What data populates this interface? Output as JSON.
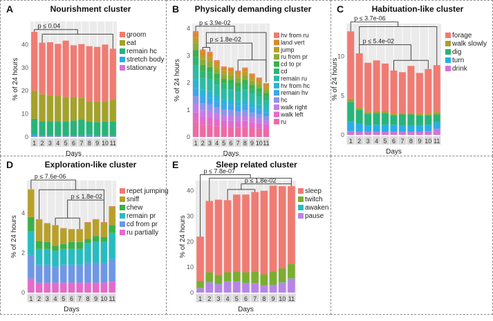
{
  "chart_data": [
    {
      "type": "bar",
      "stacked": true,
      "letter": "A",
      "title": "Nourishment cluster",
      "xlabel": "Days",
      "ylabel": "% of 24 hours",
      "ylim": [
        0,
        50
      ],
      "yticks": [
        "0",
        "10",
        "20",
        "30",
        "40"
      ],
      "ytick_values": [
        0,
        10,
        20,
        30,
        40
      ],
      "categories": [
        "1",
        "2",
        "3",
        "4",
        "5",
        "6",
        "7",
        "8",
        "9",
        "10",
        "11"
      ],
      "series": [
        {
          "name": "groom",
          "color": "#F07B72",
          "values": [
            25.5,
            22.3,
            23,
            22.5,
            24.4,
            22.5,
            23.2,
            23.9,
            23.7,
            24.5,
            21.9
          ]
        },
        {
          "name": "eat",
          "color": "#A3A22A",
          "values": [
            12.2,
            11.7,
            11.2,
            11.0,
            10.7,
            10.1,
            9.4,
            8.6,
            8.9,
            8.9,
            9.7
          ]
        },
        {
          "name": "remain hc",
          "color": "#27B47A",
          "values": [
            6.6,
            6.3,
            6.3,
            6.3,
            6.1,
            6.6,
            7.1,
            5.8,
            5.9,
            6.1,
            6.1
          ]
        },
        {
          "name": "stretch body",
          "color": "#27AEE8",
          "values": [
            1.0,
            0.3,
            0.3,
            0.3,
            0.3,
            0.3,
            0.3,
            0.8,
            0.3,
            0.3,
            0.3
          ]
        },
        {
          "name": "stationary",
          "color": "#D274DA",
          "values": [
            0.2,
            0.2,
            0.2,
            0.2,
            0.2,
            0.2,
            0.2,
            0.2,
            0.2,
            0.2,
            0.2
          ]
        }
      ],
      "brackets": [
        {
          "x1": 1,
          "y1": 45.5,
          "x2": 6.5,
          "y2": 44.5,
          "y": 46.5,
          "label": "p ≤ 0.04"
        },
        {
          "x1": 2,
          "y1": 40.8,
          "x2": 11,
          "y2": 38.2,
          "y": 44.5,
          "label": null
        }
      ]
    },
    {
      "type": "bar",
      "stacked": true,
      "letter": "B",
      "title": "Physically demanding cluster",
      "xlabel": "Days",
      "ylabel": "% of 24 hours",
      "ylim": [
        0,
        4.18
      ],
      "yticks": [
        "0",
        "1",
        "2",
        "3",
        "4"
      ],
      "ytick_values": [
        0,
        1,
        2,
        3,
        4
      ],
      "categories": [
        "1",
        "2",
        "3",
        "4",
        "5",
        "6",
        "7",
        "8",
        "9",
        "10",
        "11"
      ],
      "series": [
        {
          "name": "hv from ru",
          "color": "#F07B6E",
          "values": [
            0.05,
            0.04,
            0.04,
            0.04,
            0.03,
            0.03,
            0.03,
            0.03,
            0.03,
            0.03,
            0.03
          ]
        },
        {
          "name": "land vert",
          "color": "#DA8B2A",
          "values": [
            0.2,
            0.16,
            0.16,
            0.14,
            0.13,
            0.13,
            0.12,
            0.13,
            0.12,
            0.11,
            0.1
          ]
        },
        {
          "name": "jump",
          "color": "#B8A02A",
          "values": [
            0.2,
            0.16,
            0.16,
            0.14,
            0.13,
            0.13,
            0.12,
            0.13,
            0.12,
            0.11,
            0.1
          ]
        },
        {
          "name": "ru from pr",
          "color": "#8CAB3A",
          "values": [
            0.25,
            0.21,
            0.2,
            0.18,
            0.17,
            0.16,
            0.16,
            0.16,
            0.15,
            0.14,
            0.13
          ]
        },
        {
          "name": "cd to pr",
          "color": "#3BB04A",
          "values": [
            0.25,
            0.21,
            0.2,
            0.18,
            0.17,
            0.16,
            0.16,
            0.16,
            0.15,
            0.14,
            0.13
          ]
        },
        {
          "name": "cd",
          "color": "#2DB673",
          "values": [
            0.3,
            0.25,
            0.24,
            0.22,
            0.2,
            0.2,
            0.19,
            0.2,
            0.18,
            0.17,
            0.15
          ]
        },
        {
          "name": "remain ru",
          "color": "#2DBBA5",
          "values": [
            0.55,
            0.45,
            0.45,
            0.4,
            0.37,
            0.36,
            0.34,
            0.36,
            0.33,
            0.31,
            0.28
          ]
        },
        {
          "name": "hv from hc",
          "color": "#2BB4D4",
          "values": [
            0.3,
            0.25,
            0.24,
            0.22,
            0.2,
            0.2,
            0.19,
            0.2,
            0.18,
            0.17,
            0.15
          ]
        },
        {
          "name": "remain hv",
          "color": "#3DA6EE",
          "values": [
            0.3,
            0.25,
            0.24,
            0.22,
            0.2,
            0.2,
            0.19,
            0.2,
            0.18,
            0.17,
            0.15
          ]
        },
        {
          "name": "hc",
          "color": "#8E94EC",
          "values": [
            0.3,
            0.25,
            0.24,
            0.22,
            0.2,
            0.2,
            0.19,
            0.2,
            0.18,
            0.17,
            0.15
          ]
        },
        {
          "name": "walk right",
          "color": "#C87CE8",
          "values": [
            0.3,
            0.25,
            0.24,
            0.22,
            0.2,
            0.2,
            0.19,
            0.2,
            0.18,
            0.17,
            0.15
          ]
        },
        {
          "name": "walk left",
          "color": "#E46ACB",
          "values": [
            0.35,
            0.29,
            0.28,
            0.25,
            0.23,
            0.23,
            0.22,
            0.23,
            0.21,
            0.19,
            0.18
          ]
        },
        {
          "name": "ru",
          "color": "#EE6AA6",
          "values": [
            0.55,
            0.45,
            0.45,
            0.4,
            0.37,
            0.36,
            0.34,
            0.36,
            0.33,
            0.31,
            0.28
          ]
        }
      ],
      "brackets": [
        {
          "x1": 1,
          "y1": 3.9,
          "x2": 6.5,
          "y2": 3.85,
          "y": 4.08,
          "label": "p ≤ 3.9e-02"
        },
        {
          "x1": 2.5,
          "y1": 3.46,
          "x2": 11,
          "y2": 2.02,
          "y": 3.85,
          "label": null
        },
        {
          "x1": 2.5,
          "y1": 3.3,
          "x2": 9,
          "y2": 2.84,
          "y": 3.46,
          "label": "p ≤ 1.8e-02"
        },
        {
          "x1": 2,
          "y1": 3.2,
          "x2": 3,
          "y2": 3.15,
          "y": 3.3,
          "label": null
        },
        {
          "x1": 7,
          "y1": 2.42,
          "x2": 11,
          "y2": 2.02,
          "y": 2.84,
          "label": null
        }
      ]
    },
    {
      "type": "bar",
      "stacked": true,
      "letter": "C",
      "title": "Habituation-like cluster",
      "xlabel": "Days",
      "ylabel": "% of 24 hours",
      "ylim": [
        0,
        14.2
      ],
      "yticks": [
        "0",
        "5",
        "10"
      ],
      "ytick_values": [
        0,
        5,
        10
      ],
      "categories": [
        "1",
        "2",
        "3",
        "4",
        "5",
        "6",
        "7",
        "8",
        "9",
        "10",
        "11"
      ],
      "series": [
        {
          "name": "forage",
          "color": "#F07B72",
          "values": [
            8.6,
            6.9,
            6.3,
            6.5,
            6.1,
            5.5,
            5.2,
            6.0,
            5.2,
            5.7,
            6.0
          ]
        },
        {
          "name": "walk slowly",
          "color": "#A3A22A",
          "values": [
            0.4,
            0.3,
            0.2,
            0.2,
            0.2,
            0.2,
            0.2,
            0.2,
            0.2,
            0.2,
            0.3
          ]
        },
        {
          "name": "dig",
          "color": "#27B47A",
          "values": [
            2.5,
            1.7,
            1.5,
            1.5,
            1.5,
            1.2,
            1.4,
            1.4,
            1.3,
            1.2,
            1.0
          ]
        },
        {
          "name": "turn",
          "color": "#27AEE8",
          "values": [
            1.2,
            1.1,
            0.8,
            0.9,
            0.9,
            0.9,
            0.8,
            0.8,
            0.8,
            0.8,
            0.8
          ]
        },
        {
          "name": "drink",
          "color": "#D274DA",
          "values": [
            0.5,
            0.4,
            0.4,
            0.4,
            0.4,
            0.4,
            0.4,
            0.4,
            0.4,
            0.5,
            0.8
          ]
        }
      ],
      "brackets": [
        {
          "x1": 1,
          "y1": 13.2,
          "x2": 6.5,
          "y2": 13.8,
          "y": 14.4,
          "label": "p ≤ 3.7e-06"
        },
        {
          "x1": 2,
          "y1": 11.5,
          "x2": 11,
          "y2": 8.9,
          "y": 13.8,
          "label": null
        },
        {
          "x1": 2,
          "y1": 10.4,
          "x2": 8,
          "y2": 9.5,
          "y": 11.5,
          "label": "p ≤ 5.4e-02"
        },
        {
          "x1": 6,
          "y1": 8.2,
          "x2": 10,
          "y2": 8.4,
          "y": 9.5,
          "label": null
        }
      ]
    },
    {
      "type": "bar",
      "stacked": true,
      "letter": "D",
      "title": "Exploration-like cluster",
      "xlabel": "Days",
      "ylabel": "% of 24 hours",
      "ylim": [
        0,
        5.64
      ],
      "yticks": [
        "0",
        "2",
        "4"
      ],
      "ytick_values": [
        0,
        2,
        4
      ],
      "categories": [
        "1",
        "2",
        "3",
        "4",
        "5",
        "6",
        "7",
        "8",
        "9",
        "10",
        "11"
      ],
      "series": [
        {
          "name": "repet jumping",
          "color": "#F07B72",
          "values": [
            0.02,
            0.02,
            0.02,
            0.02,
            0.02,
            0.02,
            0.02,
            0.02,
            0.02,
            0.02,
            0.02
          ]
        },
        {
          "name": "sniff",
          "color": "#B8A02A",
          "values": [
            1.38,
            1.08,
            0.93,
            1.03,
            0.78,
            0.63,
            0.63,
            0.83,
            0.83,
            0.73,
            0.93
          ]
        },
        {
          "name": "chew",
          "color": "#3BB04A",
          "values": [
            0.7,
            0.4,
            0.35,
            0.25,
            0.25,
            0.35,
            0.35,
            0.2,
            0.3,
            0.25,
            0.4
          ]
        },
        {
          "name": "remain pr",
          "color": "#27BCC0",
          "values": [
            1.2,
            0.8,
            0.8,
            0.8,
            0.8,
            0.8,
            0.8,
            1.0,
            1.05,
            1.05,
            1.3
          ]
        },
        {
          "name": "cd from pr",
          "color": "#6E97E6",
          "values": [
            1.2,
            0.9,
            0.9,
            0.8,
            0.9,
            0.9,
            0.9,
            1.0,
            1.0,
            1.0,
            1.15
          ]
        },
        {
          "name": "ru partially",
          "color": "#E46ACB",
          "values": [
            0.7,
            0.5,
            0.5,
            0.5,
            0.5,
            0.5,
            0.5,
            0.5,
            0.5,
            0.5,
            0.55
          ]
        }
      ],
      "brackets": [
        {
          "x1": 1,
          "y1": 5.2,
          "x2": 6.5,
          "y2": 5.18,
          "y": 5.67,
          "label": "p ≤ 7.6e-06"
        },
        {
          "x1": 2,
          "y1": 3.7,
          "x2": 10,
          "y2": 4.66,
          "y": 5.18,
          "label": null
        },
        {
          "x1": 5.5,
          "y1": 3.75,
          "x2": 10,
          "y2": 3.55,
          "y": 4.66,
          "label": "p ≤ 1.8e-02"
        },
        {
          "x1": 4,
          "y1": 3.4,
          "x2": 7,
          "y2": 3.2,
          "y": 3.75,
          "label": null
        }
      ]
    },
    {
      "type": "bar",
      "stacked": true,
      "letter": "E",
      "title": "Sleep related cluster",
      "xlabel": "Days",
      "ylabel": "% of 24 hours",
      "ylim": [
        0,
        44
      ],
      "yticks": [
        "0",
        "10",
        "20",
        "30",
        "40"
      ],
      "ytick_values": [
        0,
        10,
        20,
        30,
        40
      ],
      "categories": [
        "1",
        "2",
        "3",
        "4",
        "5",
        "6",
        "7",
        "8",
        "9",
        "10",
        "11"
      ],
      "series": [
        {
          "name": "sleep",
          "color": "#F07B72",
          "values": [
            17.4,
            28,
            29.5,
            28.3,
            30.2,
            30.5,
            31.2,
            32.8,
            33.7,
            32.3,
            30.5
          ]
        },
        {
          "name": "twitch",
          "color": "#7CAE2E",
          "values": [
            2.8,
            3.9,
            3.6,
            3.6,
            3.9,
            4.1,
            4.6,
            4.4,
            5.2,
            5.5,
            5.7
          ]
        },
        {
          "name": "awaken",
          "color": "#27BCC0",
          "values": [
            0.1,
            0.1,
            0.1,
            0.1,
            0.1,
            0.1,
            0.1,
            0.1,
            0.1,
            0.1,
            0.1
          ]
        },
        {
          "name": "pause",
          "color": "#B884E8",
          "values": [
            1.7,
            4,
            3.3,
            4.3,
            4.3,
            3.8,
            3.6,
            2.7,
            3,
            3.9,
            5.5
          ]
        }
      ],
      "brackets": [
        {
          "x1": 1,
          "y1": 22,
          "x2": 6.5,
          "y2": 44.9,
          "y": 46.3,
          "label": "p ≤ 7.8e-07"
        },
        {
          "x1": 2,
          "y1": 36,
          "x2": 11,
          "y2": 42.7,
          "y": 44.9,
          "label": null
        },
        {
          "x1": 5.5,
          "y1": 40.5,
          "x2": 11,
          "y2": 41.8,
          "y": 42.7,
          "label": "p ≤ 1.8e-02"
        },
        {
          "x1": 4,
          "y1": 36.3,
          "x2": 7,
          "y2": 39.5,
          "y": 40.5,
          "label": null
        }
      ]
    }
  ]
}
